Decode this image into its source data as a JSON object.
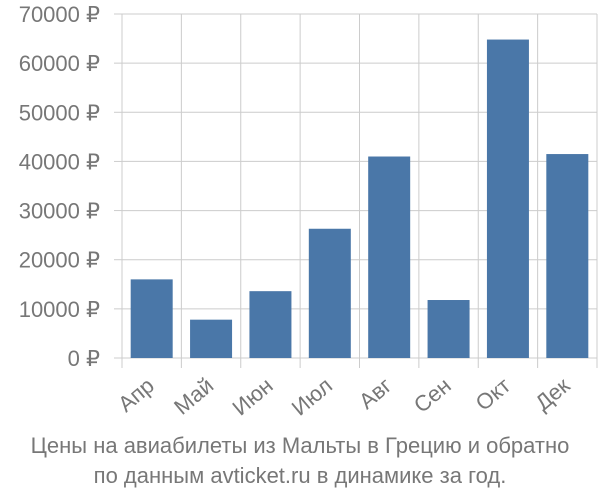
{
  "chart_data": {
    "type": "bar",
    "categories": [
      "Апр",
      "Май",
      "Июн",
      "Июл",
      "Авг",
      "Сен",
      "Окт",
      "Дек"
    ],
    "values": [
      16000,
      7800,
      13600,
      26300,
      41000,
      11800,
      64800,
      41500
    ],
    "y_ticks": [
      0,
      10000,
      20000,
      30000,
      40000,
      50000,
      60000,
      70000
    ],
    "y_tick_labels": [
      "0 ₽",
      "10000 ₽",
      "20000 ₽",
      "30000 ₽",
      "40000 ₽",
      "50000 ₽",
      "60000 ₽",
      "70000 ₽"
    ],
    "ylim": [
      0,
      70000
    ],
    "grid": true,
    "bar_color": "#4a77a8",
    "grid_color": "#cccccc",
    "text_color": "#777777"
  },
  "caption": {
    "line1": "Цены на авиабилеты из Мальты в Грецию и обратно",
    "line2": "по данным avticket.ru в динамике за год."
  }
}
